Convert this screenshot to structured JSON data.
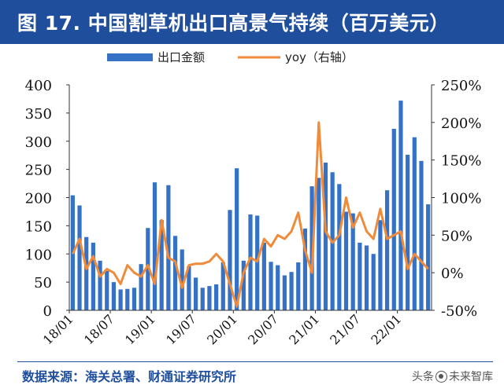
{
  "title": "图 17. 中国割草机出口高景气持续（百万美元）",
  "source": "数据来源：海关总署、财通证券研究所",
  "watermark": {
    "prefix": "头条",
    "suffix": "未来智库"
  },
  "colors": {
    "title_bg": "#1f4e9c",
    "bar": "#3572c6",
    "line": "#ef8b3a",
    "text": "#1f4e9c"
  },
  "chart_data": {
    "type": "bar+line",
    "legend": [
      {
        "name": "出口金额",
        "kind": "bar"
      },
      {
        "name": "yoy（右轴）",
        "kind": "line"
      }
    ],
    "legend_position": "top-center",
    "grid": false,
    "x_tick_labels": [
      "18/01",
      "18/07",
      "19/01",
      "19/07",
      "20/01",
      "20/07",
      "21/01",
      "21/07",
      "22/01"
    ],
    "x_tick_indices": [
      0,
      6,
      12,
      18,
      24,
      30,
      36,
      42,
      48
    ],
    "left_axis": {
      "min": 0,
      "max": 400,
      "ticks": [
        0,
        50,
        100,
        150,
        200,
        250,
        300,
        350,
        400
      ]
    },
    "right_axis": {
      "min": -50,
      "max": 250,
      "ticks": [
        "-50%",
        "0%",
        "50%",
        "100%",
        "150%",
        "200%",
        "250%"
      ],
      "tick_values": [
        -50,
        0,
        50,
        100,
        150,
        200,
        250
      ]
    },
    "series": [
      {
        "name": "出口金额",
        "axis": "left",
        "values": [
          204,
          186,
          130,
          120,
          88,
          70,
          50,
          37,
          38,
          40,
          82,
          146,
          227,
          160,
          222,
          132,
          108,
          78,
          58,
          40,
          43,
          46,
          85,
          178,
          252,
          88,
          170,
          168,
          120,
          86,
          80,
          62,
          68,
          85,
          145,
          220,
          235,
          262,
          245,
          224,
          175,
          172,
          120,
          115,
          100,
          160,
          213,
          322,
          372,
          276,
          307,
          265,
          188
        ]
      },
      {
        "name": "yoy（右轴）",
        "axis": "right",
        "values": [
          25,
          45,
          5,
          22,
          -5,
          5,
          0,
          -15,
          10,
          0,
          -5,
          10,
          -15,
          70,
          20,
          15,
          -20,
          10,
          12,
          12,
          15,
          25,
          15,
          -15,
          -45,
          0,
          20,
          15,
          45,
          35,
          50,
          45,
          55,
          80,
          30,
          0,
          200,
          55,
          40,
          50,
          100,
          60,
          80,
          55,
          45,
          85,
          45,
          50,
          55,
          5,
          25,
          15,
          5
        ]
      }
    ]
  }
}
